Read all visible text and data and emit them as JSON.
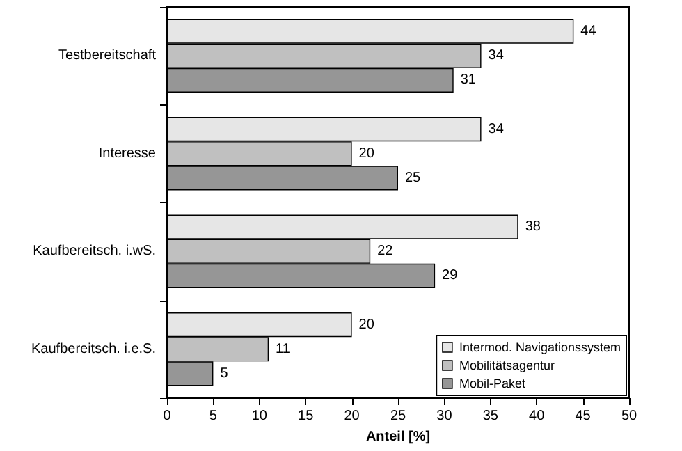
{
  "chart_data": {
    "type": "bar",
    "orientation": "horizontal",
    "xlabel": "Anteil [%]",
    "categories": [
      "Testbereitschaft",
      "Interesse",
      "Kaufbereitsch. i.wS.",
      "Kaufbereitsch. i.e.S."
    ],
    "series": [
      {
        "name": "Intermod. Navigationssystem",
        "color": "#e6e6e6",
        "values": [
          44,
          34,
          38,
          20
        ]
      },
      {
        "name": "Mobilitätsagentur",
        "color": "#c0c0c0",
        "values": [
          34,
          20,
          22,
          11
        ]
      },
      {
        "name": "Mobil-Paket",
        "color": "#969696",
        "values": [
          31,
          25,
          29,
          5
        ]
      }
    ],
    "xlim": [
      0,
      50
    ],
    "xticks": [
      0,
      5,
      10,
      15,
      20,
      25,
      30,
      35,
      40,
      45,
      50
    ],
    "grid": false,
    "legend": "bottom right",
    "data_labels": true
  }
}
